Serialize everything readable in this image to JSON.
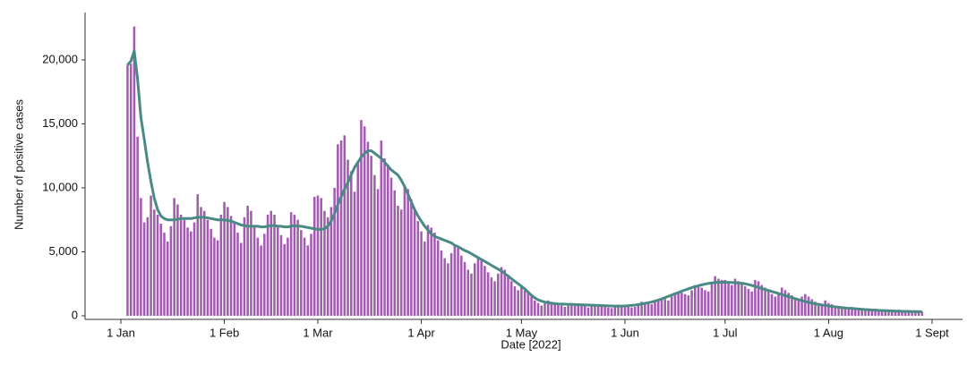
{
  "chart_data": {
    "type": "bar-line",
    "xlabel": "Date [2022]",
    "ylabel": "Number of positive cases",
    "ylim": [
      0,
      23700
    ],
    "yticks": [
      0,
      {
        "value": 5000,
        "label": "5,000"
      },
      {
        "value": 10000,
        "label": "10,000"
      },
      {
        "value": 15000,
        "label": "15,000"
      },
      {
        "value": 20000,
        "label": "20,000"
      }
    ],
    "xticks": [
      {
        "value": "2022-01-01",
        "label": "1 Jan"
      },
      {
        "value": "2022-02-01",
        "label": "1 Feb"
      },
      {
        "value": "2022-03-01",
        "label": "1 Mar"
      },
      {
        "value": "2022-04-01",
        "label": "1 Apr"
      },
      {
        "value": "2022-05-01",
        "label": "1 May"
      },
      {
        "value": "2022-06-01",
        "label": "1 Jun"
      },
      {
        "value": "2022-07-01",
        "label": "1 Jul"
      },
      {
        "value": "2022-08-01",
        "label": "1 Aug"
      },
      {
        "value": "2022-09-01",
        "label": "1 Sept"
      }
    ],
    "x": [
      "2022-01-03",
      "2022-01-04",
      "2022-01-05",
      "2022-01-06",
      "2022-01-07",
      "2022-01-08",
      "2022-01-09",
      "2022-01-10",
      "2022-01-11",
      "2022-01-12",
      "2022-01-13",
      "2022-01-14",
      "2022-01-15",
      "2022-01-16",
      "2022-01-17",
      "2022-01-18",
      "2022-01-19",
      "2022-01-20",
      "2022-01-21",
      "2022-01-22",
      "2022-01-23",
      "2022-01-24",
      "2022-01-25",
      "2022-01-26",
      "2022-01-27",
      "2022-01-28",
      "2022-01-29",
      "2022-01-30",
      "2022-01-31",
      "2022-02-01",
      "2022-02-02",
      "2022-02-03",
      "2022-02-04",
      "2022-02-05",
      "2022-02-06",
      "2022-02-07",
      "2022-02-08",
      "2022-02-09",
      "2022-02-10",
      "2022-02-11",
      "2022-02-12",
      "2022-02-13",
      "2022-02-14",
      "2022-02-15",
      "2022-02-16",
      "2022-02-17",
      "2022-02-18",
      "2022-02-19",
      "2022-02-20",
      "2022-02-21",
      "2022-02-22",
      "2022-02-23",
      "2022-02-24",
      "2022-02-25",
      "2022-02-26",
      "2022-02-27",
      "2022-02-28",
      "2022-03-01",
      "2022-03-02",
      "2022-03-03",
      "2022-03-04",
      "2022-03-05",
      "2022-03-06",
      "2022-03-07",
      "2022-03-08",
      "2022-03-09",
      "2022-03-10",
      "2022-03-11",
      "2022-03-12",
      "2022-03-13",
      "2022-03-14",
      "2022-03-15",
      "2022-03-16",
      "2022-03-17",
      "2022-03-18",
      "2022-03-19",
      "2022-03-20",
      "2022-03-21",
      "2022-03-22",
      "2022-03-23",
      "2022-03-24",
      "2022-03-25",
      "2022-03-26",
      "2022-03-27",
      "2022-03-28",
      "2022-03-29",
      "2022-03-30",
      "2022-03-31",
      "2022-04-01",
      "2022-04-02",
      "2022-04-03",
      "2022-04-04",
      "2022-04-05",
      "2022-04-06",
      "2022-04-07",
      "2022-04-08",
      "2022-04-09",
      "2022-04-10",
      "2022-04-11",
      "2022-04-12",
      "2022-04-13",
      "2022-04-14",
      "2022-04-15",
      "2022-04-16",
      "2022-04-17",
      "2022-04-18",
      "2022-04-19",
      "2022-04-20",
      "2022-04-21",
      "2022-04-22",
      "2022-04-23",
      "2022-04-24",
      "2022-04-25",
      "2022-04-26",
      "2022-04-27",
      "2022-04-28",
      "2022-04-29",
      "2022-04-30",
      "2022-05-01",
      "2022-05-02",
      "2022-05-03",
      "2022-05-04",
      "2022-05-05",
      "2022-05-06",
      "2022-05-07",
      "2022-05-08",
      "2022-05-09",
      "2022-05-10",
      "2022-05-11",
      "2022-05-12",
      "2022-05-13",
      "2022-05-14",
      "2022-05-15",
      "2022-05-16",
      "2022-05-17",
      "2022-05-18",
      "2022-05-19",
      "2022-05-20",
      "2022-05-21",
      "2022-05-22",
      "2022-05-23",
      "2022-05-24",
      "2022-05-25",
      "2022-05-26",
      "2022-05-27",
      "2022-05-28",
      "2022-05-29",
      "2022-05-30",
      "2022-05-31",
      "2022-06-01",
      "2022-06-02",
      "2022-06-03",
      "2022-06-04",
      "2022-06-05",
      "2022-06-06",
      "2022-06-07",
      "2022-06-08",
      "2022-06-09",
      "2022-06-10",
      "2022-06-11",
      "2022-06-12",
      "2022-06-13",
      "2022-06-14",
      "2022-06-15",
      "2022-06-16",
      "2022-06-17",
      "2022-06-18",
      "2022-06-19",
      "2022-06-20",
      "2022-06-21",
      "2022-06-22",
      "2022-06-23",
      "2022-06-24",
      "2022-06-25",
      "2022-06-26",
      "2022-06-27",
      "2022-06-28",
      "2022-06-29",
      "2022-06-30",
      "2022-07-01",
      "2022-07-02",
      "2022-07-03",
      "2022-07-04",
      "2022-07-05",
      "2022-07-06",
      "2022-07-07",
      "2022-07-08",
      "2022-07-09",
      "2022-07-10",
      "2022-07-11",
      "2022-07-12",
      "2022-07-13",
      "2022-07-14",
      "2022-07-15",
      "2022-07-16",
      "2022-07-17",
      "2022-07-18",
      "2022-07-19",
      "2022-07-20",
      "2022-07-21",
      "2022-07-22",
      "2022-07-23",
      "2022-07-24",
      "2022-07-25",
      "2022-07-26",
      "2022-07-27",
      "2022-07-28",
      "2022-07-29",
      "2022-07-30",
      "2022-07-31",
      "2022-08-01",
      "2022-08-02",
      "2022-08-03",
      "2022-08-04",
      "2022-08-05",
      "2022-08-06",
      "2022-08-07",
      "2022-08-08",
      "2022-08-09",
      "2022-08-10",
      "2022-08-11",
      "2022-08-12",
      "2022-08-13",
      "2022-08-14",
      "2022-08-15",
      "2022-08-16",
      "2022-08-17",
      "2022-08-18",
      "2022-08-19",
      "2022-08-20",
      "2022-08-21",
      "2022-08-22",
      "2022-08-23",
      "2022-08-24",
      "2022-08-25",
      "2022-08-26",
      "2022-08-27",
      "2022-08-28",
      "2022-08-29"
    ],
    "series": [
      {
        "type": "bar",
        "color": "#a25bb0",
        "values": [
          19600,
          19700,
          22600,
          14000,
          9200,
          7300,
          7700,
          9400,
          8300,
          7900,
          7200,
          6500,
          5800,
          7000,
          9200,
          8700,
          7900,
          7500,
          6900,
          6600,
          7300,
          9500,
          8500,
          8200,
          7500,
          6800,
          6100,
          5900,
          7900,
          8900,
          8500,
          7800,
          7200,
          6500,
          5700,
          7700,
          8600,
          8200,
          7000,
          6100,
          5500,
          6400,
          7900,
          8200,
          7900,
          7100,
          6300,
          5600,
          6100,
          8100,
          7900,
          7500,
          6700,
          6100,
          5500,
          6400,
          9300,
          9400,
          9200,
          8200,
          7700,
          8500,
          10000,
          13400,
          13700,
          14100,
          12200,
          11300,
          9700,
          12000,
          15300,
          14800,
          13600,
          12500,
          11000,
          9900,
          13700,
          12300,
          11800,
          10800,
          9800,
          8600,
          8300,
          10200,
          9900,
          9100,
          8300,
          7400,
          6600,
          5800,
          7100,
          6900,
          6500,
          5900,
          5100,
          4500,
          4100,
          4900,
          5500,
          5300,
          4700,
          4200,
          3600,
          3300,
          4100,
          4600,
          4300,
          3900,
          3400,
          3000,
          2700,
          3300,
          3800,
          3600,
          3200,
          2700,
          2300,
          2000,
          2400,
          2000,
          1800,
          1500,
          1200,
          1000,
          800,
          1000,
          1200,
          1100,
          1000,
          900,
          800,
          700,
          800,
          1000,
          950,
          900,
          850,
          750,
          650,
          750,
          900,
          850,
          800,
          750,
          650,
          600,
          700,
          850,
          800,
          750,
          700,
          650,
          700,
          900,
          1100,
          1000,
          950,
          900,
          1100,
          1300,
          1400,
          1300,
          1200,
          1500,
          1800,
          1900,
          1800,
          1700,
          1600,
          2000,
          2400,
          2300,
          2200,
          2000,
          1900,
          2500,
          3100,
          2900,
          2800,
          2800,
          2600,
          2400,
          2900,
          2700,
          2500,
          2300,
          2100,
          1900,
          2800,
          2700,
          2400,
          2200,
          1900,
          1700,
          1500,
          1800,
          2200,
          2000,
          1800,
          1600,
          1400,
          1200,
          1500,
          1700,
          1500,
          1300,
          1100,
          1000,
          900,
          1200,
          1000,
          900,
          800,
          700,
          650,
          600,
          550,
          700,
          650,
          600,
          550,
          500,
          450,
          420,
          550,
          520,
          480,
          450,
          400,
          380,
          360,
          480,
          450,
          420,
          400,
          380,
          360,
          340,
          330
        ]
      },
      {
        "type": "line",
        "color": "#4a8a84",
        "values": [
          19600,
          19900,
          20700,
          18500,
          15500,
          13800,
          12000,
          10500,
          9200,
          8300,
          7800,
          7600,
          7500,
          7500,
          7500,
          7550,
          7600,
          7600,
          7600,
          7600,
          7650,
          7700,
          7700,
          7700,
          7650,
          7600,
          7550,
          7500,
          7500,
          7500,
          7450,
          7400,
          7300,
          7200,
          7100,
          7050,
          7000,
          7000,
          7000,
          7000,
          6950,
          6950,
          7000,
          7050,
          7050,
          7000,
          7000,
          6950,
          6950,
          7000,
          7050,
          7000,
          7000,
          6950,
          6900,
          6850,
          6800,
          6750,
          6750,
          6800,
          7000,
          7400,
          8000,
          8700,
          9300,
          9900,
          10400,
          11000,
          11600,
          12000,
          12400,
          12700,
          12900,
          12900,
          12700,
          12500,
          12300,
          12000,
          11700,
          11400,
          11200,
          11000,
          10600,
          10100,
          9500,
          8900,
          8300,
          7800,
          7400,
          7000,
          6700,
          6400,
          6200,
          6100,
          6000,
          5900,
          5800,
          5700,
          5500,
          5400,
          5250,
          5100,
          5000,
          4850,
          4700,
          4550,
          4400,
          4250,
          4100,
          3950,
          3800,
          3650,
          3500,
          3300,
          3100,
          2900,
          2700,
          2500,
          2300,
          2100,
          1850,
          1600,
          1400,
          1250,
          1150,
          1080,
          1020,
          980,
          950,
          930,
          920,
          910,
          900,
          890,
          880,
          870,
          860,
          850,
          840,
          830,
          820,
          810,
          800,
          790,
          780,
          770,
          760,
          760,
          760,
          770,
          790,
          810,
          840,
          880,
          920,
          970,
          1020,
          1080,
          1150,
          1230,
          1320,
          1420,
          1520,
          1620,
          1720,
          1820,
          1920,
          2020,
          2110,
          2200,
          2280,
          2350,
          2420,
          2480,
          2530,
          2570,
          2600,
          2610,
          2620,
          2620,
          2610,
          2600,
          2590,
          2570,
          2540,
          2500,
          2440,
          2370,
          2300,
          2220,
          2140,
          2060,
          1980,
          1900,
          1820,
          1740,
          1660,
          1580,
          1500,
          1420,
          1340,
          1260,
          1180,
          1110,
          1050,
          990,
          940,
          890,
          850,
          810,
          770,
          730,
          700,
          670,
          640,
          610,
          590,
          570,
          550,
          530,
          510,
          490,
          470,
          455,
          440,
          425,
          410,
          400,
          390,
          380,
          370,
          360,
          350,
          345,
          340,
          335,
          330,
          325,
          320
        ]
      }
    ]
  }
}
